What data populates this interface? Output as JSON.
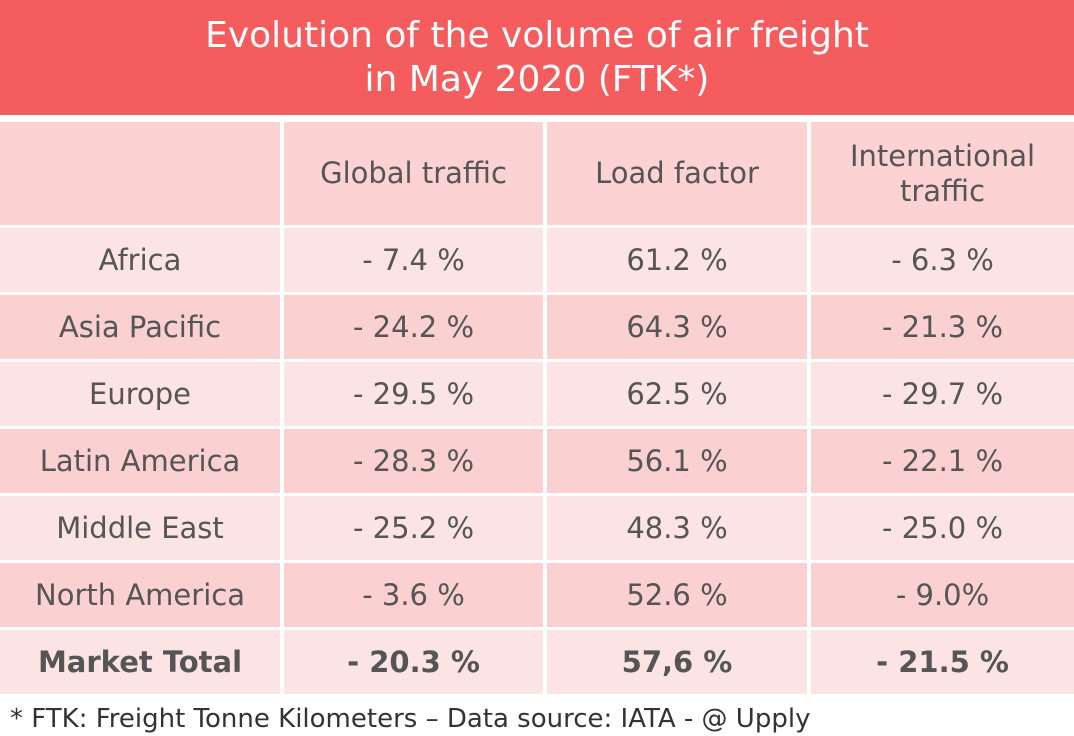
{
  "header": {
    "title_lines": [
      "Evolution of the volume of air freight",
      "in May 2020 (FTK*)"
    ]
  },
  "table": {
    "columns": [
      "Global traffic",
      "Load factor",
      "International traffic"
    ],
    "rows": [
      [
        "Africa",
        "- 7.4 %",
        "61.2 %",
        "- 6.3 %"
      ],
      [
        "Asia Pacific",
        "- 24.2 %",
        "64.3 %",
        "- 21.3 %"
      ],
      [
        "Europe",
        "- 29.5 %",
        "62.5 %",
        "- 29.7 %"
      ],
      [
        "Latin America",
        "- 28.3 %",
        "56.1 %",
        "- 22.1 %"
      ],
      [
        "Middle East",
        "- 25.2 %",
        "48.3 %",
        "- 25.0 %"
      ],
      [
        "North America",
        "- 3.6 %",
        "52.6 %",
        "- 9.0%"
      ]
    ],
    "total": [
      "Market Total",
      "- 20.3 %",
      "57,6 %",
      "- 21.5 %"
    ]
  },
  "footer": {
    "note": "* FTK: Freight Tonne Kilometers – Data source: IATA - @ Upply"
  }
}
